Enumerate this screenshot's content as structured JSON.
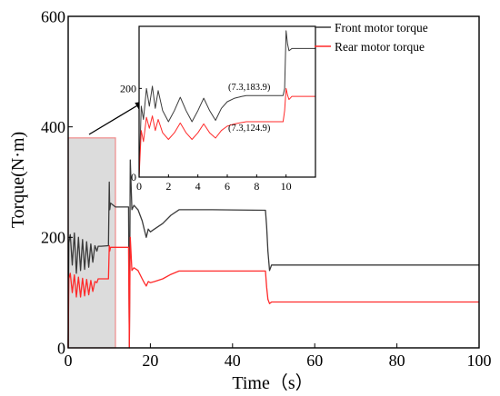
{
  "chart_data": [
    {
      "id": "main",
      "type": "line",
      "title": "",
      "xlabel": "Time（s）",
      "ylabel": "Torque(N·m)",
      "xlim": [
        0,
        100
      ],
      "ylim": [
        0,
        600
      ],
      "xticks": [
        0,
        20,
        40,
        60,
        80,
        100
      ],
      "yticks": [
        0,
        200,
        400,
        600
      ],
      "grid": false,
      "legend": "top-right",
      "highlight_region": {
        "x": [
          0,
          11.5
        ],
        "y": [
          0,
          380
        ]
      },
      "series": [
        {
          "name": "Front motor torque",
          "color": "#3a3a3a",
          "points": [
            [
              0,
              0
            ],
            [
              0.15,
              190
            ],
            [
              0.5,
              205
            ],
            [
              1,
              150
            ],
            [
              1.5,
              208
            ],
            [
              2,
              135
            ],
            [
              2.5,
              200
            ],
            [
              3,
              140
            ],
            [
              3.5,
              196
            ],
            [
              4,
              142
            ],
            [
              4.5,
              192
            ],
            [
              5,
              146
            ],
            [
              5.5,
              188
            ],
            [
              6,
              155
            ],
            [
              6.5,
              185
            ],
            [
              7,
              175
            ],
            [
              7.3,
              183.9
            ],
            [
              8,
              184
            ],
            [
              9.8,
              185
            ],
            [
              10,
              300
            ],
            [
              10.1,
              250
            ],
            [
              10.3,
              262
            ],
            [
              11.5,
              255
            ],
            [
              14.7,
              255
            ],
            [
              14.9,
              0
            ],
            [
              15.1,
              340
            ],
            [
              15.5,
              250
            ],
            [
              16,
              258
            ],
            [
              17,
              250
            ],
            [
              18,
              230
            ],
            [
              18.5,
              215
            ],
            [
              19,
              200
            ],
            [
              19.5,
              215
            ],
            [
              20,
              210
            ],
            [
              21,
              215
            ],
            [
              23,
              225
            ],
            [
              25,
              240
            ],
            [
              27,
              250
            ],
            [
              35,
              250
            ],
            [
              48,
              249
            ],
            [
              48.3,
              220
            ],
            [
              48.6,
              175
            ],
            [
              49,
              140
            ],
            [
              49.5,
              150
            ],
            [
              100,
              150
            ]
          ]
        },
        {
          "name": "Rear motor torque",
          "color": "#ff2a2a",
          "points": [
            [
              0,
              0
            ],
            [
              0.15,
              125
            ],
            [
              0.5,
              135
            ],
            [
              1,
              100
            ],
            [
              1.5,
              132
            ],
            [
              2,
              92
            ],
            [
              2.5,
              128
            ],
            [
              3,
              92
            ],
            [
              3.5,
              126
            ],
            [
              4,
              94
            ],
            [
              4.5,
              124
            ],
            [
              5,
              96
            ],
            [
              5.5,
              122
            ],
            [
              6,
              102
            ],
            [
              6.5,
              120
            ],
            [
              7,
              118
            ],
            [
              7.3,
              124.9
            ],
            [
              8,
              125
            ],
            [
              9.8,
              125
            ],
            [
              10,
              185
            ],
            [
              10.1,
              175
            ],
            [
              10.3,
              182
            ],
            [
              11.5,
              182
            ],
            [
              14.7,
              182
            ],
            [
              14.9,
              0
            ],
            [
              15.1,
              200
            ],
            [
              15.5,
              140
            ],
            [
              16,
              145
            ],
            [
              17,
              140
            ],
            [
              18,
              125
            ],
            [
              18.5,
              118
            ],
            [
              19,
              112
            ],
            [
              19.5,
              120
            ],
            [
              20,
              118
            ],
            [
              21,
              120
            ],
            [
              23,
              125
            ],
            [
              25,
              133
            ],
            [
              27,
              139
            ],
            [
              35,
              139
            ],
            [
              48,
              139
            ],
            [
              48.3,
              110
            ],
            [
              48.6,
              88
            ],
            [
              49,
              80
            ],
            [
              49.5,
              83
            ],
            [
              100,
              83
            ]
          ]
        }
      ]
    },
    {
      "id": "inset",
      "type": "line",
      "title": "",
      "xlabel": "",
      "ylabel": "",
      "xlim": [
        0,
        12
      ],
      "ylim": [
        0,
        340
      ],
      "xticks": [
        0,
        2,
        4,
        6,
        8,
        10
      ],
      "yticks": [
        0,
        200
      ],
      "grid": false,
      "annotations": [
        {
          "text": "(7.3,183.9)",
          "x": 7.3,
          "y": 183.9
        },
        {
          "text": "(7.3,124.9)",
          "x": 7.3,
          "y": 124.9
        }
      ],
      "series": [
        {
          "name": "Front motor torque",
          "color": "#3a3a3a",
          "points": [
            [
              0,
              0
            ],
            [
              0.15,
              160
            ],
            [
              0.3,
              130
            ],
            [
              0.5,
              200
            ],
            [
              0.7,
              160
            ],
            [
              0.9,
              205
            ],
            [
              1.1,
              155
            ],
            [
              1.3,
              195
            ],
            [
              1.6,
              150
            ],
            [
              2,
              125
            ],
            [
              2.4,
              150
            ],
            [
              2.8,
              180
            ],
            [
              3.2,
              150
            ],
            [
              3.6,
              125
            ],
            [
              4,
              150
            ],
            [
              4.4,
              178
            ],
            [
              4.8,
              150
            ],
            [
              5.2,
              128
            ],
            [
              5.6,
              155
            ],
            [
              6,
              170
            ],
            [
              6.5,
              178
            ],
            [
              7,
              182
            ],
            [
              7.3,
              183.9
            ],
            [
              8,
              184
            ],
            [
              9.8,
              184
            ],
            [
              9.9,
              200
            ],
            [
              10,
              330
            ],
            [
              10.1,
              300
            ],
            [
              10.2,
              285
            ],
            [
              10.4,
              290
            ],
            [
              12,
              290
            ]
          ]
        },
        {
          "name": "Rear motor torque",
          "color": "#ff2a2a",
          "points": [
            [
              0,
              0
            ],
            [
              0.15,
              105
            ],
            [
              0.3,
              80
            ],
            [
              0.5,
              135
            ],
            [
              0.7,
              110
            ],
            [
              0.9,
              138
            ],
            [
              1.1,
              105
            ],
            [
              1.3,
              130
            ],
            [
              1.6,
              100
            ],
            [
              2,
              85
            ],
            [
              2.4,
              100
            ],
            [
              2.8,
              122
            ],
            [
              3.2,
              100
            ],
            [
              3.6,
              85
            ],
            [
              4,
              100
            ],
            [
              4.4,
              120
            ],
            [
              4.8,
              100
            ],
            [
              5.2,
              88
            ],
            [
              5.6,
              105
            ],
            [
              6,
              115
            ],
            [
              6.5,
              120
            ],
            [
              7,
              123
            ],
            [
              7.3,
              124.9
            ],
            [
              8,
              125
            ],
            [
              9.8,
              125
            ],
            [
              9.9,
              150
            ],
            [
              10,
              200
            ],
            [
              10.1,
              185
            ],
            [
              10.2,
              175
            ],
            [
              10.4,
              182
            ],
            [
              12,
              182
            ]
          ]
        }
      ]
    }
  ]
}
